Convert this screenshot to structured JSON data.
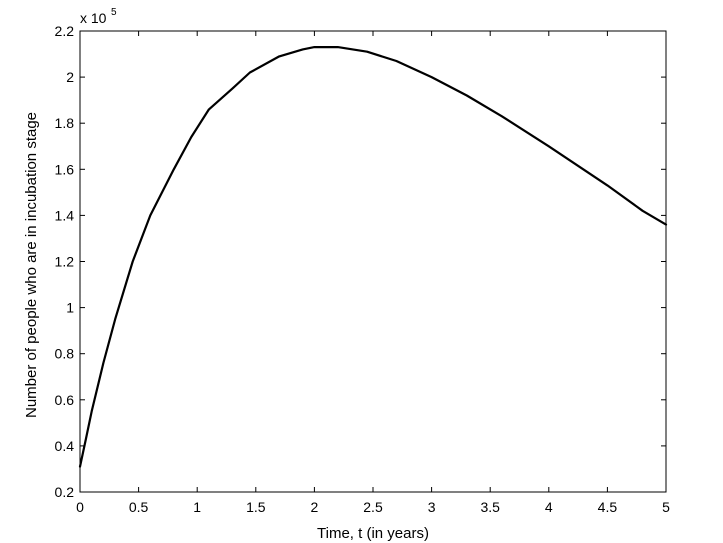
{
  "chart_data": {
    "type": "line",
    "title": "",
    "xlabel": "Time, t (in years)",
    "ylabel": "Number of people who are in incubation stage",
    "y_multiplier": "x 10",
    "y_multiplier_exponent": "5",
    "xlim": [
      0,
      5
    ],
    "ylim": [
      0.2,
      2.2
    ],
    "grid": false,
    "x_ticks": [
      "0",
      "0.5",
      "1",
      "1.5",
      "2",
      "2.5",
      "3",
      "3.5",
      "4",
      "4.5",
      "5"
    ],
    "y_ticks": [
      "0.2",
      "0.4",
      "0.6",
      "0.8",
      "1",
      "1.2",
      "1.4",
      "1.6",
      "1.8",
      "2",
      "2.2"
    ],
    "series": [
      {
        "line_color": "#000000",
        "x": [
          0,
          0.05,
          0.1,
          0.2,
          0.3,
          0.45,
          0.6,
          0.8,
          0.95,
          1.1,
          1.3,
          1.45,
          1.7,
          1.9,
          2.0,
          2.2,
          2.45,
          2.7,
          3.0,
          3.3,
          3.6,
          4.0,
          4.5,
          4.8,
          5.0
        ],
        "y": [
          0.31,
          0.43,
          0.55,
          0.76,
          0.95,
          1.2,
          1.4,
          1.6,
          1.74,
          1.86,
          1.95,
          2.02,
          2.09,
          2.12,
          2.13,
          2.13,
          2.11,
          2.07,
          2.0,
          1.92,
          1.83,
          1.7,
          1.53,
          1.42,
          1.36
        ]
      }
    ]
  }
}
